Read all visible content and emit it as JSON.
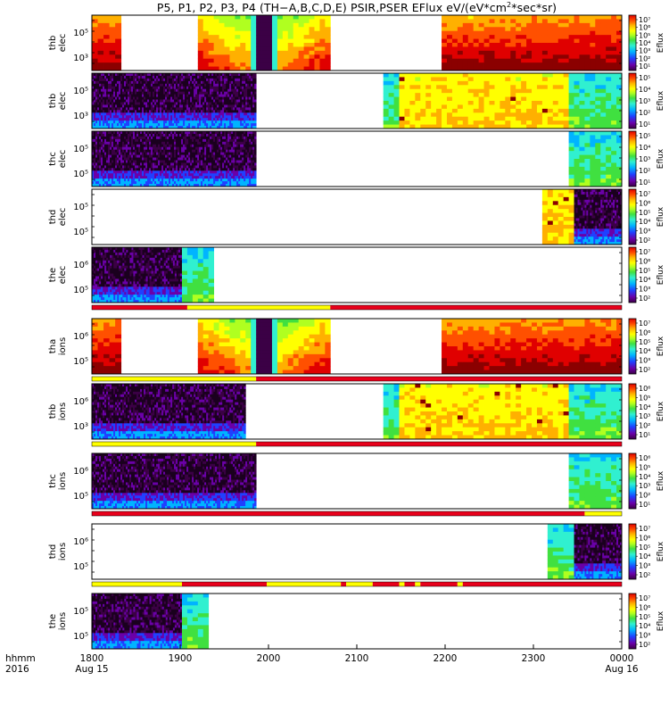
{
  "figure": {
    "title": "P5, P1, P2, P3, P4 (TH−A,B,C,D,E) PSIR,PSER EFlux eV/(eV*cm²*sec*sr)",
    "time_axis_label": "hhmm",
    "year_label": "2016"
  },
  "colors": {
    "palette": [
      "#3b0045",
      "#6a00a8",
      "#2040ff",
      "#00b4ff",
      "#30f0d0",
      "#40e040",
      "#b0ff20",
      "#ffff00",
      "#ffb000",
      "#ff5000",
      "#e00000",
      "#8b0000"
    ],
    "empty": "#ffffff",
    "state_red": "#e8001b",
    "state_yellow": "#ffff00"
  },
  "chart_data": {
    "type": "heatmap",
    "x_ticks": [
      "1800",
      "1900",
      "2000",
      "2100",
      "2200",
      "2300",
      "0000"
    ],
    "x_sublabels": [
      {
        "tick": "1800",
        "text": "Aug 15"
      },
      {
        "tick": "0000",
        "text": "Aug 16"
      }
    ],
    "xlim": [
      "2016-08-15 18:00",
      "2016-08-16 00:00"
    ],
    "colorbar_label": "Eflux",
    "panels": [
      {
        "probe": "thb",
        "species": "elec",
        "y_tick_labels": [
          "10⁵",
          "10³"
        ],
        "cbar_ticks": [
          "10⁷",
          "10⁶",
          "10⁵",
          "10⁴",
          "10³",
          "10²",
          "10¹"
        ],
        "segments": [
          {
            "start": 0.0,
            "end": 0.055,
            "kind": "hot"
          },
          {
            "start": 0.2,
            "end": 0.45,
            "kind": "sheet"
          },
          {
            "start": 0.66,
            "end": 1.0,
            "kind": "hot"
          }
        ]
      },
      {
        "probe": "thb",
        "species": "elec",
        "y_tick_labels": [
          "10⁵",
          "10³"
        ],
        "cbar_ticks": [
          "10⁵",
          "10⁴",
          "10³",
          "10²",
          "10¹"
        ],
        "segments": [
          {
            "start": 0.0,
            "end": 0.31,
            "kind": "lobe"
          },
          {
            "start": 0.55,
            "end": 0.58,
            "kind": "cool"
          },
          {
            "start": 0.58,
            "end": 0.9,
            "kind": "warm"
          },
          {
            "start": 0.9,
            "end": 1.0,
            "kind": "cool"
          }
        ]
      },
      {
        "probe": "thc",
        "species": "elec",
        "y_tick_labels": [
          "10⁵",
          "10⁵"
        ],
        "cbar_ticks": [
          "10⁵",
          "10⁴",
          "10³",
          "10²",
          "10¹"
        ],
        "segments": [
          {
            "start": 0.0,
            "end": 0.31,
            "kind": "lobe"
          },
          {
            "start": 0.9,
            "end": 1.0,
            "kind": "cool"
          }
        ]
      },
      {
        "probe": "thd",
        "species": "elec",
        "y_tick_labels": [
          "10⁵",
          "10⁵"
        ],
        "cbar_ticks": [
          "10⁷",
          "10⁶",
          "10⁵",
          "10⁴",
          "10³",
          "10²"
        ],
        "segments": [
          {
            "start": 0.85,
            "end": 0.91,
            "kind": "warm"
          },
          {
            "start": 0.91,
            "end": 1.0,
            "kind": "lobe"
          }
        ]
      },
      {
        "probe": "the",
        "species": "elec",
        "y_tick_labels": [
          "10⁶",
          "10⁵"
        ],
        "cbar_ticks": [
          "10⁷",
          "10⁶",
          "10⁵",
          "10⁴",
          "10³",
          "10²"
        ],
        "segments": [
          {
            "start": 0.0,
            "end": 0.17,
            "kind": "lobe"
          },
          {
            "start": 0.17,
            "end": 0.23,
            "kind": "cool"
          }
        ]
      },
      {
        "probe": "tha",
        "species": "ions",
        "y_tick_labels": [
          "10⁶",
          "10⁵"
        ],
        "cbar_ticks": [
          "10⁷",
          "10⁶",
          "10⁵",
          "10⁴",
          "10³",
          "10²"
        ],
        "segments": [
          {
            "start": 0.0,
            "end": 0.055,
            "kind": "hot"
          },
          {
            "start": 0.2,
            "end": 0.45,
            "kind": "sheet"
          },
          {
            "start": 0.66,
            "end": 1.0,
            "kind": "hot"
          }
        ]
      },
      {
        "probe": "thb",
        "species": "ions",
        "y_tick_labels": [
          "10⁶",
          "10³"
        ],
        "cbar_ticks": [
          "10⁶",
          "10⁵",
          "10⁴",
          "10³",
          "10²",
          "10¹"
        ],
        "segments": [
          {
            "start": 0.0,
            "end": 0.29,
            "kind": "lobe"
          },
          {
            "start": 0.55,
            "end": 0.58,
            "kind": "cool"
          },
          {
            "start": 0.58,
            "end": 0.9,
            "kind": "warm"
          },
          {
            "start": 0.9,
            "end": 1.0,
            "kind": "cool"
          }
        ]
      },
      {
        "probe": "thc",
        "species": "ions",
        "y_tick_labels": [
          "10⁶",
          "10⁵"
        ],
        "cbar_ticks": [
          "10⁶",
          "10⁵",
          "10⁴",
          "10³",
          "10²",
          "10¹"
        ],
        "segments": [
          {
            "start": 0.0,
            "end": 0.31,
            "kind": "lobe"
          },
          {
            "start": 0.9,
            "end": 1.0,
            "kind": "cool"
          }
        ]
      },
      {
        "probe": "thd",
        "species": "ions",
        "y_tick_labels": [
          "10⁶",
          "10⁵"
        ],
        "cbar_ticks": [
          "10⁷",
          "10⁶",
          "10⁵",
          "10⁴",
          "10³",
          "10²"
        ],
        "segments": [
          {
            "start": 0.86,
            "end": 0.91,
            "kind": "cool"
          },
          {
            "start": 0.91,
            "end": 1.0,
            "kind": "lobe"
          }
        ]
      },
      {
        "probe": "the",
        "species": "ions",
        "y_tick_labels": [
          "10⁵",
          "10⁵"
        ],
        "cbar_ticks": [
          "10⁷",
          "10⁶",
          "10⁵",
          "10⁴",
          "10³",
          "10²"
        ],
        "segments": [
          {
            "start": 0.0,
            "end": 0.17,
            "kind": "lobe"
          },
          {
            "start": 0.17,
            "end": 0.22,
            "kind": "cool"
          }
        ]
      }
    ],
    "state_bars": [
      {
        "after_panel": 4,
        "segments": [
          {
            "start": 0.0,
            "end": 0.18,
            "color": "red"
          },
          {
            "start": 0.18,
            "end": 0.45,
            "color": "yellow"
          },
          {
            "start": 0.45,
            "end": 1.0,
            "color": "red"
          }
        ]
      },
      {
        "after_panel": 5,
        "segments": [
          {
            "start": 0.0,
            "end": 0.31,
            "color": "yellow"
          },
          {
            "start": 0.31,
            "end": 1.0,
            "color": "red"
          }
        ]
      },
      {
        "after_panel": 6,
        "segments": [
          {
            "start": 0.0,
            "end": 0.31,
            "color": "yellow"
          },
          {
            "start": 0.31,
            "end": 1.0,
            "color": "red"
          }
        ]
      },
      {
        "after_panel": 7,
        "segments": [
          {
            "start": 0.0,
            "end": 0.93,
            "color": "red"
          },
          {
            "start": 0.93,
            "end": 1.0,
            "color": "yellow"
          }
        ]
      },
      {
        "after_panel": 8,
        "segments": [
          {
            "start": 0.0,
            "end": 0.17,
            "color": "yellow"
          },
          {
            "start": 0.17,
            "end": 0.33,
            "color": "red"
          },
          {
            "start": 0.33,
            "end": 0.47,
            "color": "yellow"
          },
          {
            "start": 0.47,
            "end": 0.48,
            "color": "red"
          },
          {
            "start": 0.48,
            "end": 0.53,
            "color": "yellow"
          },
          {
            "start": 0.53,
            "end": 0.58,
            "color": "red"
          },
          {
            "start": 0.58,
            "end": 0.59,
            "color": "yellow"
          },
          {
            "start": 0.59,
            "end": 0.61,
            "color": "red"
          },
          {
            "start": 0.61,
            "end": 0.62,
            "color": "yellow"
          },
          {
            "start": 0.62,
            "end": 0.69,
            "color": "red"
          },
          {
            "start": 0.69,
            "end": 0.7,
            "color": "yellow"
          },
          {
            "start": 0.7,
            "end": 1.0,
            "color": "red"
          }
        ]
      }
    ]
  }
}
